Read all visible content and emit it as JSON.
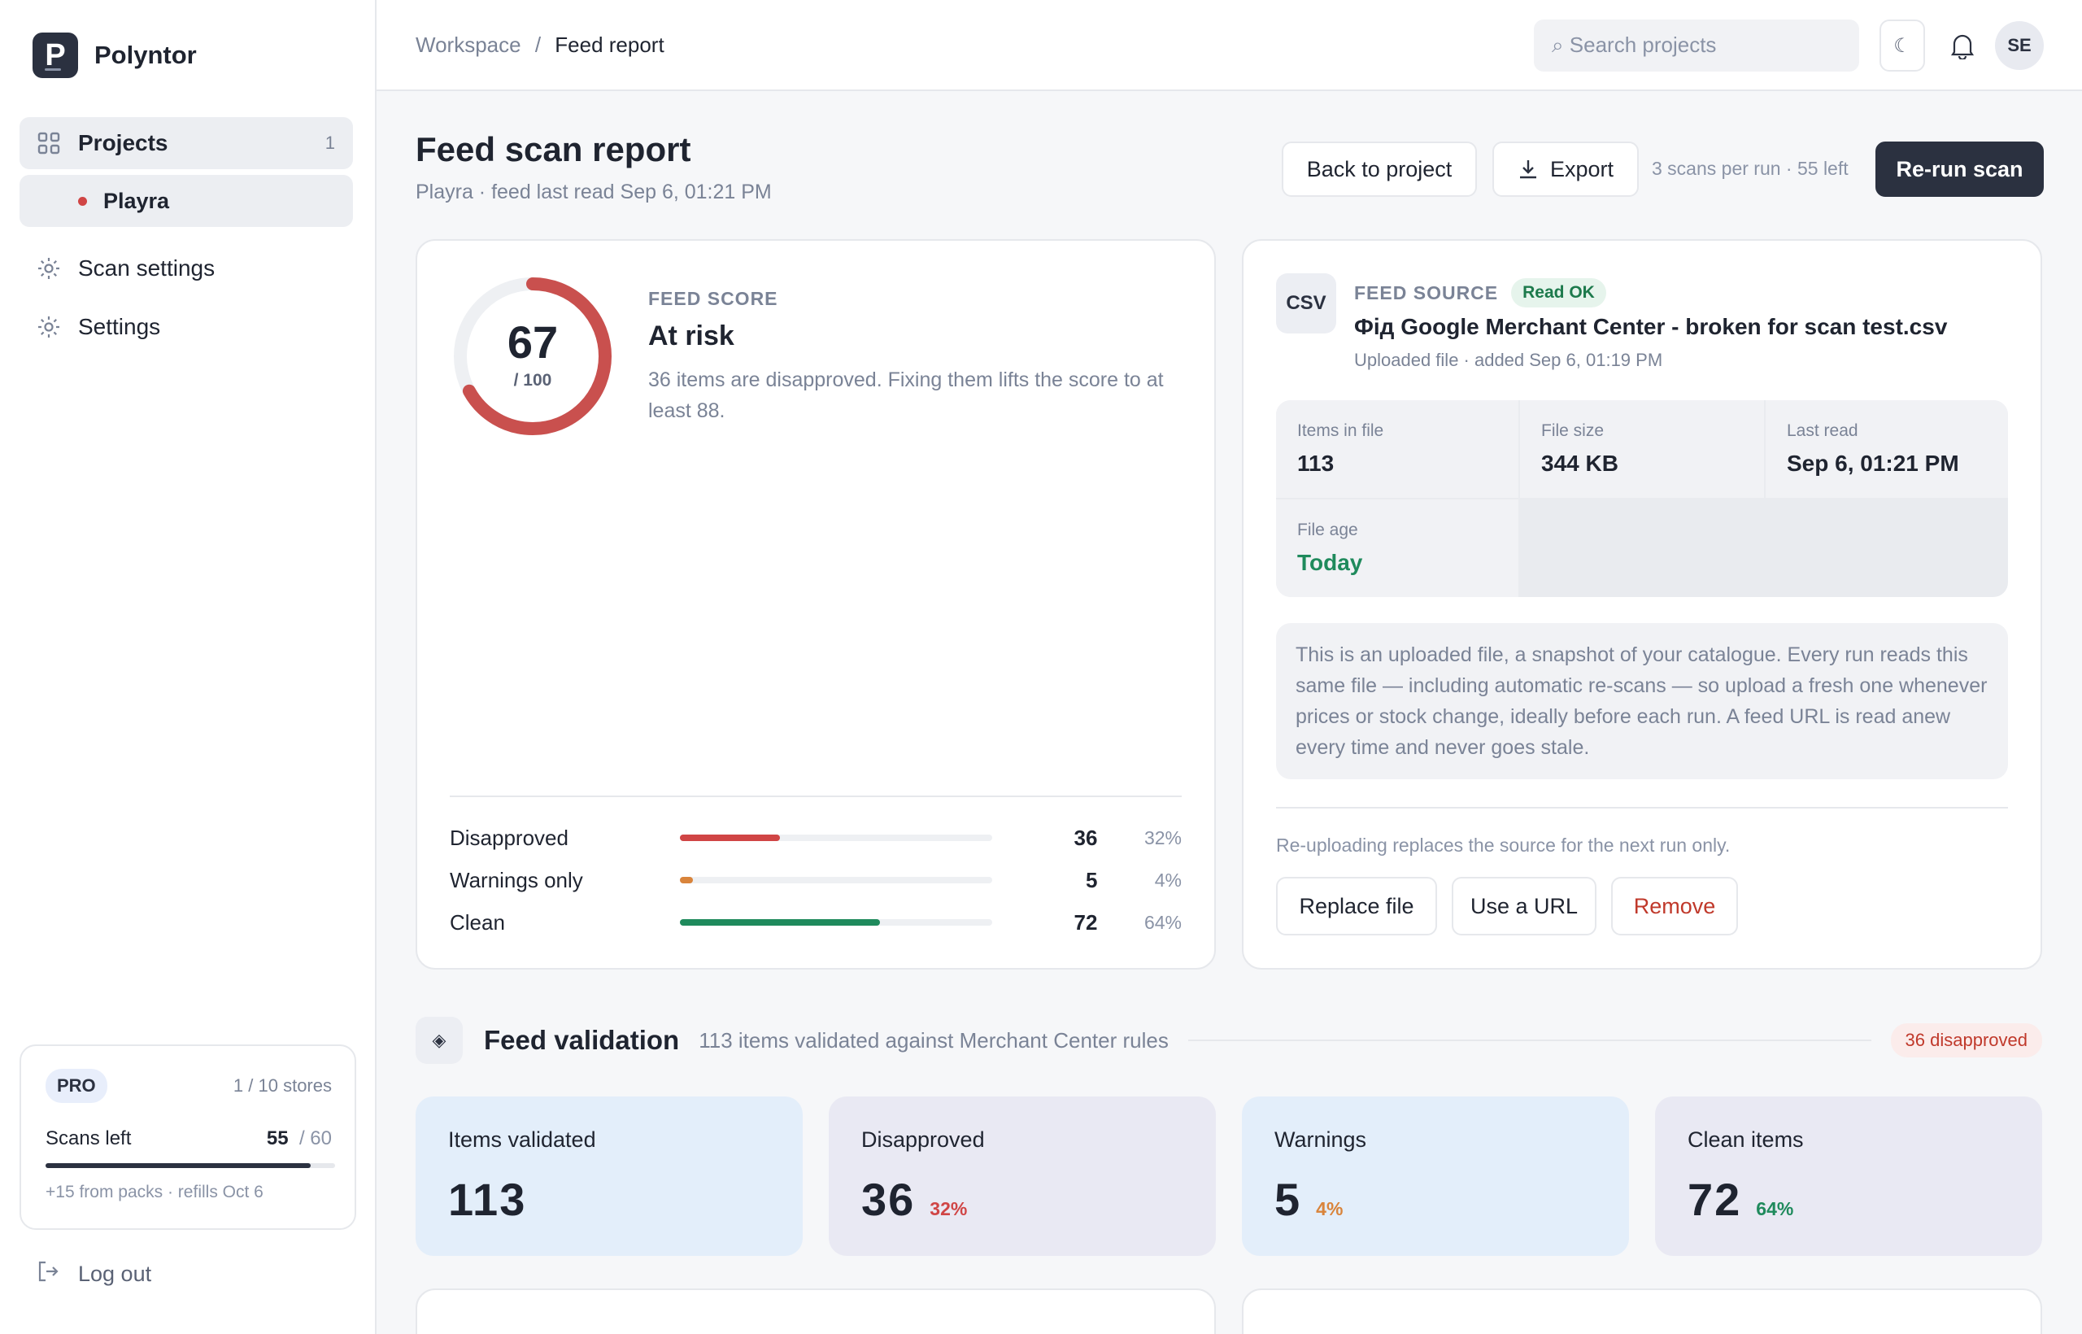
{
  "brand": {
    "name": "Polyntor",
    "logo_letter": "P"
  },
  "sidebar": {
    "items": [
      {
        "label": "Projects",
        "count": "1",
        "icon": "grid-icon"
      },
      {
        "label": "Scan settings",
        "icon": "gear-icon"
      },
      {
        "label": "Settings",
        "icon": "gear-icon"
      }
    ],
    "project": {
      "label": "Playra"
    },
    "plan": {
      "badge": "PRO",
      "stores": "1 / 10 stores",
      "scans_label": "Scans left",
      "scans_used": "55",
      "scans_total": "/ 60",
      "scans_fraction": 0.9167,
      "refill": "+15 from packs · refills Oct 6"
    },
    "logout": "Log out"
  },
  "topbar": {
    "breadcrumb": {
      "root": "Workspace",
      "sep": "/",
      "current": "Feed report"
    },
    "search_placeholder": "⌕ Search projects",
    "theme_icon": "☾",
    "avatar": "SE"
  },
  "header": {
    "title": "Feed scan report",
    "subtitle": "Playra · feed last read Sep 6, 01:21 PM",
    "back_label": "Back to project",
    "export_label": "Export",
    "quota": "3 scans per run · 55 left",
    "rerun_label": "Re-run scan"
  },
  "score": {
    "value": "67",
    "max": "/ 100",
    "fraction": 0.67,
    "eyebrow": "FEED SCORE",
    "status": "At risk",
    "description": "36 items are disapproved. Fixing them lifts the score to at least 88.",
    "breakdown": [
      {
        "label": "Disapproved",
        "count": "36",
        "pct": "32%",
        "fraction": 0.32,
        "color": "#d04545"
      },
      {
        "label": "Warnings only",
        "count": "5",
        "pct": "4%",
        "fraction": 0.04,
        "color": "#d9843b"
      },
      {
        "label": "Clean",
        "count": "72",
        "pct": "64%",
        "fraction": 0.64,
        "color": "#1f8a5c"
      }
    ]
  },
  "source": {
    "type_badge": "CSV",
    "eyebrow": "FEED SOURCE",
    "status_badge": "Read OK",
    "filename": "Фід Google Merchant Center - broken for scan test.csv",
    "meta": "Uploaded file · added Sep 6, 01:19 PM",
    "stats": [
      {
        "label": "Items in file",
        "value": "113"
      },
      {
        "label": "File size",
        "value": "344 KB"
      },
      {
        "label": "Last read",
        "value": "Sep 6, 01:21 PM"
      },
      {
        "label": "File age",
        "value": "Today"
      }
    ],
    "note": "This is an uploaded file, a snapshot of your catalogue. Every run reads this same file — including automatic re-scans — so upload a fresh one whenever prices or stock change, ideally before each run. A feed URL is read anew every time and never goes stale.",
    "reupload_hint": "Re-uploading replaces the source for the next run only.",
    "replace_label": "Replace file",
    "url_label": "Use a URL",
    "remove_label": "Remove"
  },
  "validation": {
    "icon": "◈",
    "title": "Feed validation",
    "subtitle": "113 items validated against Merchant Center rules",
    "badge": "36 disapproved",
    "metrics": [
      {
        "label": "Items validated",
        "value": "113",
        "pct": ""
      },
      {
        "label": "Disapproved",
        "value": "36",
        "pct": "32%"
      },
      {
        "label": "Warnings",
        "value": "5",
        "pct": "4%"
      },
      {
        "label": "Clean items",
        "value": "72",
        "pct": "64%"
      }
    ]
  }
}
